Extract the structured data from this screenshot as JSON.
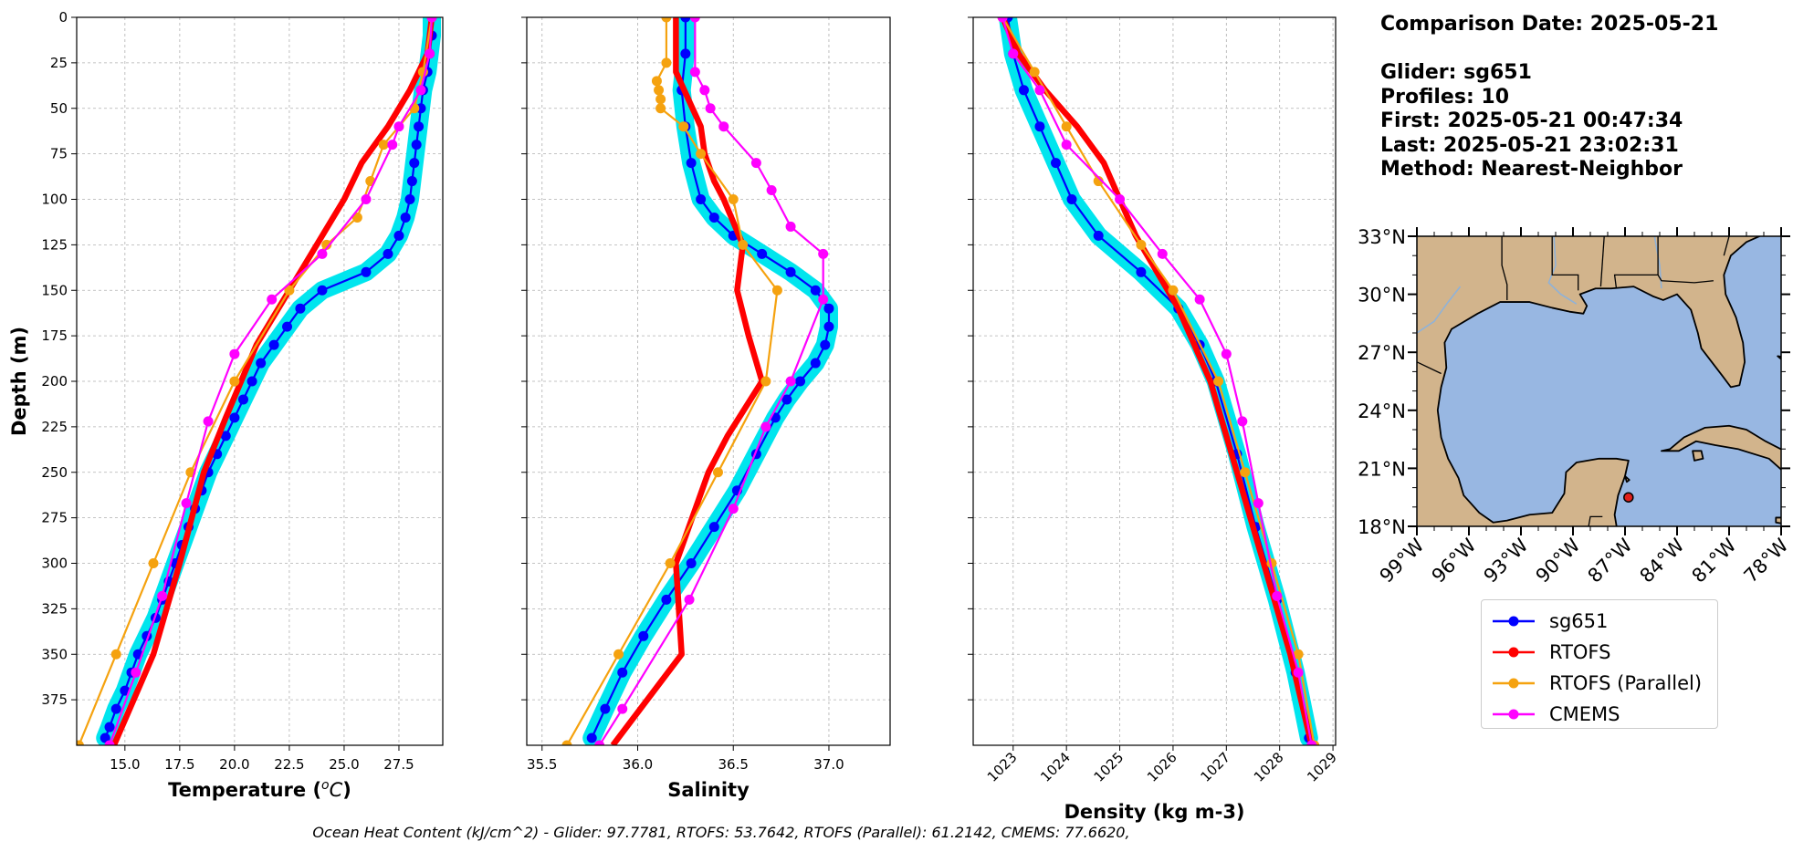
{
  "info": {
    "comparison_date": "Comparison Date: 2025-05-21",
    "glider": "Glider: sg651",
    "profiles": "Profiles: 10",
    "first": "First: 2025-05-21 00:47:34",
    "last": "Last: 2025-05-21 23:02:31",
    "method": "Method: Nearest-Neighbor"
  },
  "footer": "Ocean Heat Content (kJ/cm^2) - Glider: 97.7781,  RTOFS: 53.7642,  RTOFS (Parallel): 61.2142,  CMEMS: 77.6620,",
  "colors": {
    "glider": "#0000ff",
    "glider_envelope": "#00e5ee",
    "rtofs": "#ff0000",
    "rtofs_parallel": "#f5a20f",
    "cmems": "#ff00ff",
    "land": "#d2b48c",
    "ocean": "#98b7e2",
    "station": "#e0201b"
  },
  "legend": [
    {
      "name": "sg651",
      "color": "#0000ff"
    },
    {
      "name": "RTOFS",
      "color": "#ff0000"
    },
    {
      "name": "RTOFS (Parallel)",
      "color": "#f5a20f"
    },
    {
      "name": "CMEMS",
      "color": "#ff00ff"
    }
  ],
  "chart_data": [
    {
      "type": "line",
      "xlabel": "Temperature ($^{o}C$)",
      "ylabel": "Depth (m)",
      "xlim": [
        12.8,
        29.5
      ],
      "ylim": [
        400,
        0
      ],
      "xticks": [
        15.0,
        17.5,
        20.0,
        22.5,
        25.0,
        27.5
      ],
      "xtick_labels": [
        "15.0",
        "17.5",
        "20.0",
        "22.5",
        "25.0",
        "27.5"
      ],
      "yticks": [
        0,
        25,
        50,
        75,
        100,
        125,
        150,
        175,
        200,
        225,
        250,
        275,
        300,
        325,
        350,
        375
      ],
      "grid": true,
      "series": [
        {
          "name": "sg651",
          "depth": [
            0,
            10,
            20,
            30,
            40,
            50,
            60,
            70,
            80,
            90,
            100,
            110,
            120,
            130,
            140,
            150,
            160,
            170,
            180,
            190,
            200,
            210,
            220,
            230,
            240,
            250,
            260,
            270,
            280,
            290,
            300,
            310,
            320,
            330,
            340,
            350,
            360,
            370,
            380,
            390,
            396
          ],
          "values": [
            29.0,
            29.0,
            28.9,
            28.8,
            28.6,
            28.5,
            28.4,
            28.3,
            28.2,
            28.1,
            28.0,
            27.8,
            27.5,
            27.0,
            26.0,
            24.0,
            23.0,
            22.4,
            21.8,
            21.2,
            20.8,
            20.4,
            20.0,
            19.6,
            19.2,
            18.8,
            18.5,
            18.2,
            17.9,
            17.6,
            17.3,
            17.0,
            16.7,
            16.4,
            16.0,
            15.6,
            15.3,
            15.0,
            14.6,
            14.3,
            14.1
          ]
        },
        {
          "name": "RTOFS",
          "depth": [
            0,
            20,
            40,
            60,
            80,
            100,
            120,
            140,
            160,
            180,
            200,
            220,
            250,
            300,
            350,
            400
          ],
          "values": [
            29.0,
            28.8,
            28.0,
            27.0,
            25.8,
            25.0,
            24.0,
            23.0,
            22.0,
            21.0,
            20.3,
            19.6,
            18.6,
            17.5,
            16.3,
            14.5
          ]
        },
        {
          "name": "RTOFS (Parallel)",
          "depth": [
            0,
            30,
            50,
            70,
            90,
            110,
            125,
            150,
            200,
            250,
            300,
            350,
            400
          ],
          "values": [
            29.0,
            28.6,
            28.2,
            26.8,
            26.2,
            25.6,
            24.2,
            22.5,
            20.0,
            18.0,
            16.3,
            14.6,
            12.9
          ]
        },
        {
          "name": "CMEMS",
          "depth": [
            0,
            20,
            40,
            60,
            70,
            100,
            130,
            155,
            185,
            222,
            267,
            318,
            360,
            400
          ],
          "values": [
            29.0,
            28.9,
            28.5,
            27.5,
            27.2,
            26.0,
            24.0,
            21.7,
            20.0,
            18.8,
            17.8,
            16.7,
            15.5,
            14.3
          ]
        }
      ]
    },
    {
      "type": "line",
      "xlabel": "Salinity",
      "xlim": [
        35.42,
        37.32
      ],
      "ylim": [
        400,
        0
      ],
      "xticks": [
        35.5,
        36.0,
        36.5,
        37.0
      ],
      "xtick_labels": [
        "35.5",
        "36.0",
        "36.5",
        "37.0"
      ],
      "grid": true,
      "series": [
        {
          "name": "sg651",
          "depth": [
            0,
            20,
            40,
            60,
            80,
            100,
            110,
            120,
            130,
            140,
            150,
            160,
            170,
            180,
            190,
            200,
            210,
            220,
            240,
            260,
            280,
            300,
            320,
            340,
            360,
            380,
            396
          ],
          "values": [
            36.25,
            36.25,
            36.23,
            36.25,
            36.28,
            36.33,
            36.4,
            36.5,
            36.65,
            36.8,
            36.93,
            37.0,
            37.0,
            36.98,
            36.93,
            36.85,
            36.78,
            36.72,
            36.62,
            36.52,
            36.4,
            36.28,
            36.15,
            36.03,
            35.92,
            35.83,
            35.76
          ]
        },
        {
          "name": "RTOFS",
          "depth": [
            0,
            30,
            60,
            75,
            90,
            100,
            125,
            150,
            175,
            200,
            230,
            250,
            300,
            350,
            400
          ],
          "values": [
            36.2,
            36.2,
            36.33,
            36.35,
            36.4,
            36.45,
            36.55,
            36.52,
            36.58,
            36.65,
            36.47,
            36.37,
            36.2,
            36.23,
            35.87
          ]
        },
        {
          "name": "RTOFS (Parallel)",
          "depth": [
            0,
            25,
            35,
            40,
            45,
            50,
            60,
            75,
            100,
            125,
            150,
            200,
            250,
            300,
            350,
            400
          ],
          "values": [
            36.15,
            36.15,
            36.1,
            36.11,
            36.12,
            36.12,
            36.24,
            36.33,
            36.5,
            36.55,
            36.73,
            36.67,
            36.42,
            36.17,
            35.9,
            35.63
          ]
        },
        {
          "name": "CMEMS",
          "depth": [
            0,
            30,
            40,
            50,
            60,
            80,
            95,
            115,
            130,
            155,
            200,
            225,
            270,
            320,
            380,
            400
          ],
          "values": [
            36.3,
            36.3,
            36.35,
            36.38,
            36.45,
            36.62,
            36.7,
            36.8,
            36.97,
            36.97,
            36.8,
            36.67,
            36.5,
            36.27,
            35.92,
            35.8
          ]
        }
      ]
    },
    {
      "type": "line",
      "xlabel": "Density (kg m-3)",
      "xlim": [
        1022.25,
        1029.05
      ],
      "ylim": [
        400,
        0
      ],
      "xticks": [
        1023,
        1024,
        1025,
        1026,
        1027,
        1028,
        1029
      ],
      "xtick_labels": [
        "1023",
        "1024",
        "1025",
        "1026",
        "1027",
        "1028",
        "1029"
      ],
      "grid": true,
      "series": [
        {
          "name": "sg651",
          "depth": [
            0,
            20,
            40,
            60,
            80,
            100,
            120,
            140,
            160,
            180,
            200,
            240,
            280,
            320,
            360,
            396
          ],
          "values": [
            1022.9,
            1023.0,
            1023.2,
            1023.5,
            1023.8,
            1024.1,
            1024.6,
            1025.4,
            1026.1,
            1026.5,
            1026.8,
            1027.2,
            1027.55,
            1027.95,
            1028.3,
            1028.55
          ]
        },
        {
          "name": "RTOFS",
          "depth": [
            0,
            20,
            40,
            60,
            80,
            100,
            120,
            140,
            160,
            180,
            200,
            250,
            300,
            350,
            400
          ],
          "values": [
            1022.8,
            1023.1,
            1023.6,
            1024.2,
            1024.7,
            1025.0,
            1025.3,
            1025.7,
            1026.1,
            1026.4,
            1026.7,
            1027.2,
            1027.7,
            1028.2,
            1028.6
          ]
        },
        {
          "name": "RTOFS (Parallel)",
          "depth": [
            0,
            30,
            60,
            90,
            125,
            150,
            200,
            250,
            300,
            350,
            400
          ],
          "values": [
            1022.8,
            1023.4,
            1024.0,
            1024.6,
            1025.4,
            1026.0,
            1026.85,
            1027.35,
            1027.85,
            1028.35,
            1028.65
          ]
        },
        {
          "name": "CMEMS",
          "depth": [
            0,
            20,
            40,
            70,
            100,
            130,
            155,
            185,
            222,
            267,
            318,
            360,
            400
          ],
          "values": [
            1022.8,
            1023.0,
            1023.5,
            1024.0,
            1025.0,
            1025.8,
            1026.5,
            1027.0,
            1027.3,
            1027.6,
            1027.95,
            1028.35,
            1028.6
          ]
        }
      ]
    }
  ],
  "map": {
    "lon_range": [
      -99,
      -78
    ],
    "lat_range": [
      18,
      33
    ],
    "lon_ticks": [
      -99,
      -96,
      -93,
      -90,
      -87,
      -84,
      -81,
      -78
    ],
    "lon_labels": [
      "99°W",
      "96°W",
      "93°W",
      "90°W",
      "87°W",
      "84°W",
      "81°W",
      "78°W"
    ],
    "lat_ticks": [
      33,
      30,
      27,
      24,
      21,
      18
    ],
    "lat_labels": [
      "33°N",
      "30°N",
      "27°N",
      "24°N",
      "21°N",
      "18°N"
    ],
    "station": {
      "lon": -86.8,
      "lat": 19.5
    }
  }
}
